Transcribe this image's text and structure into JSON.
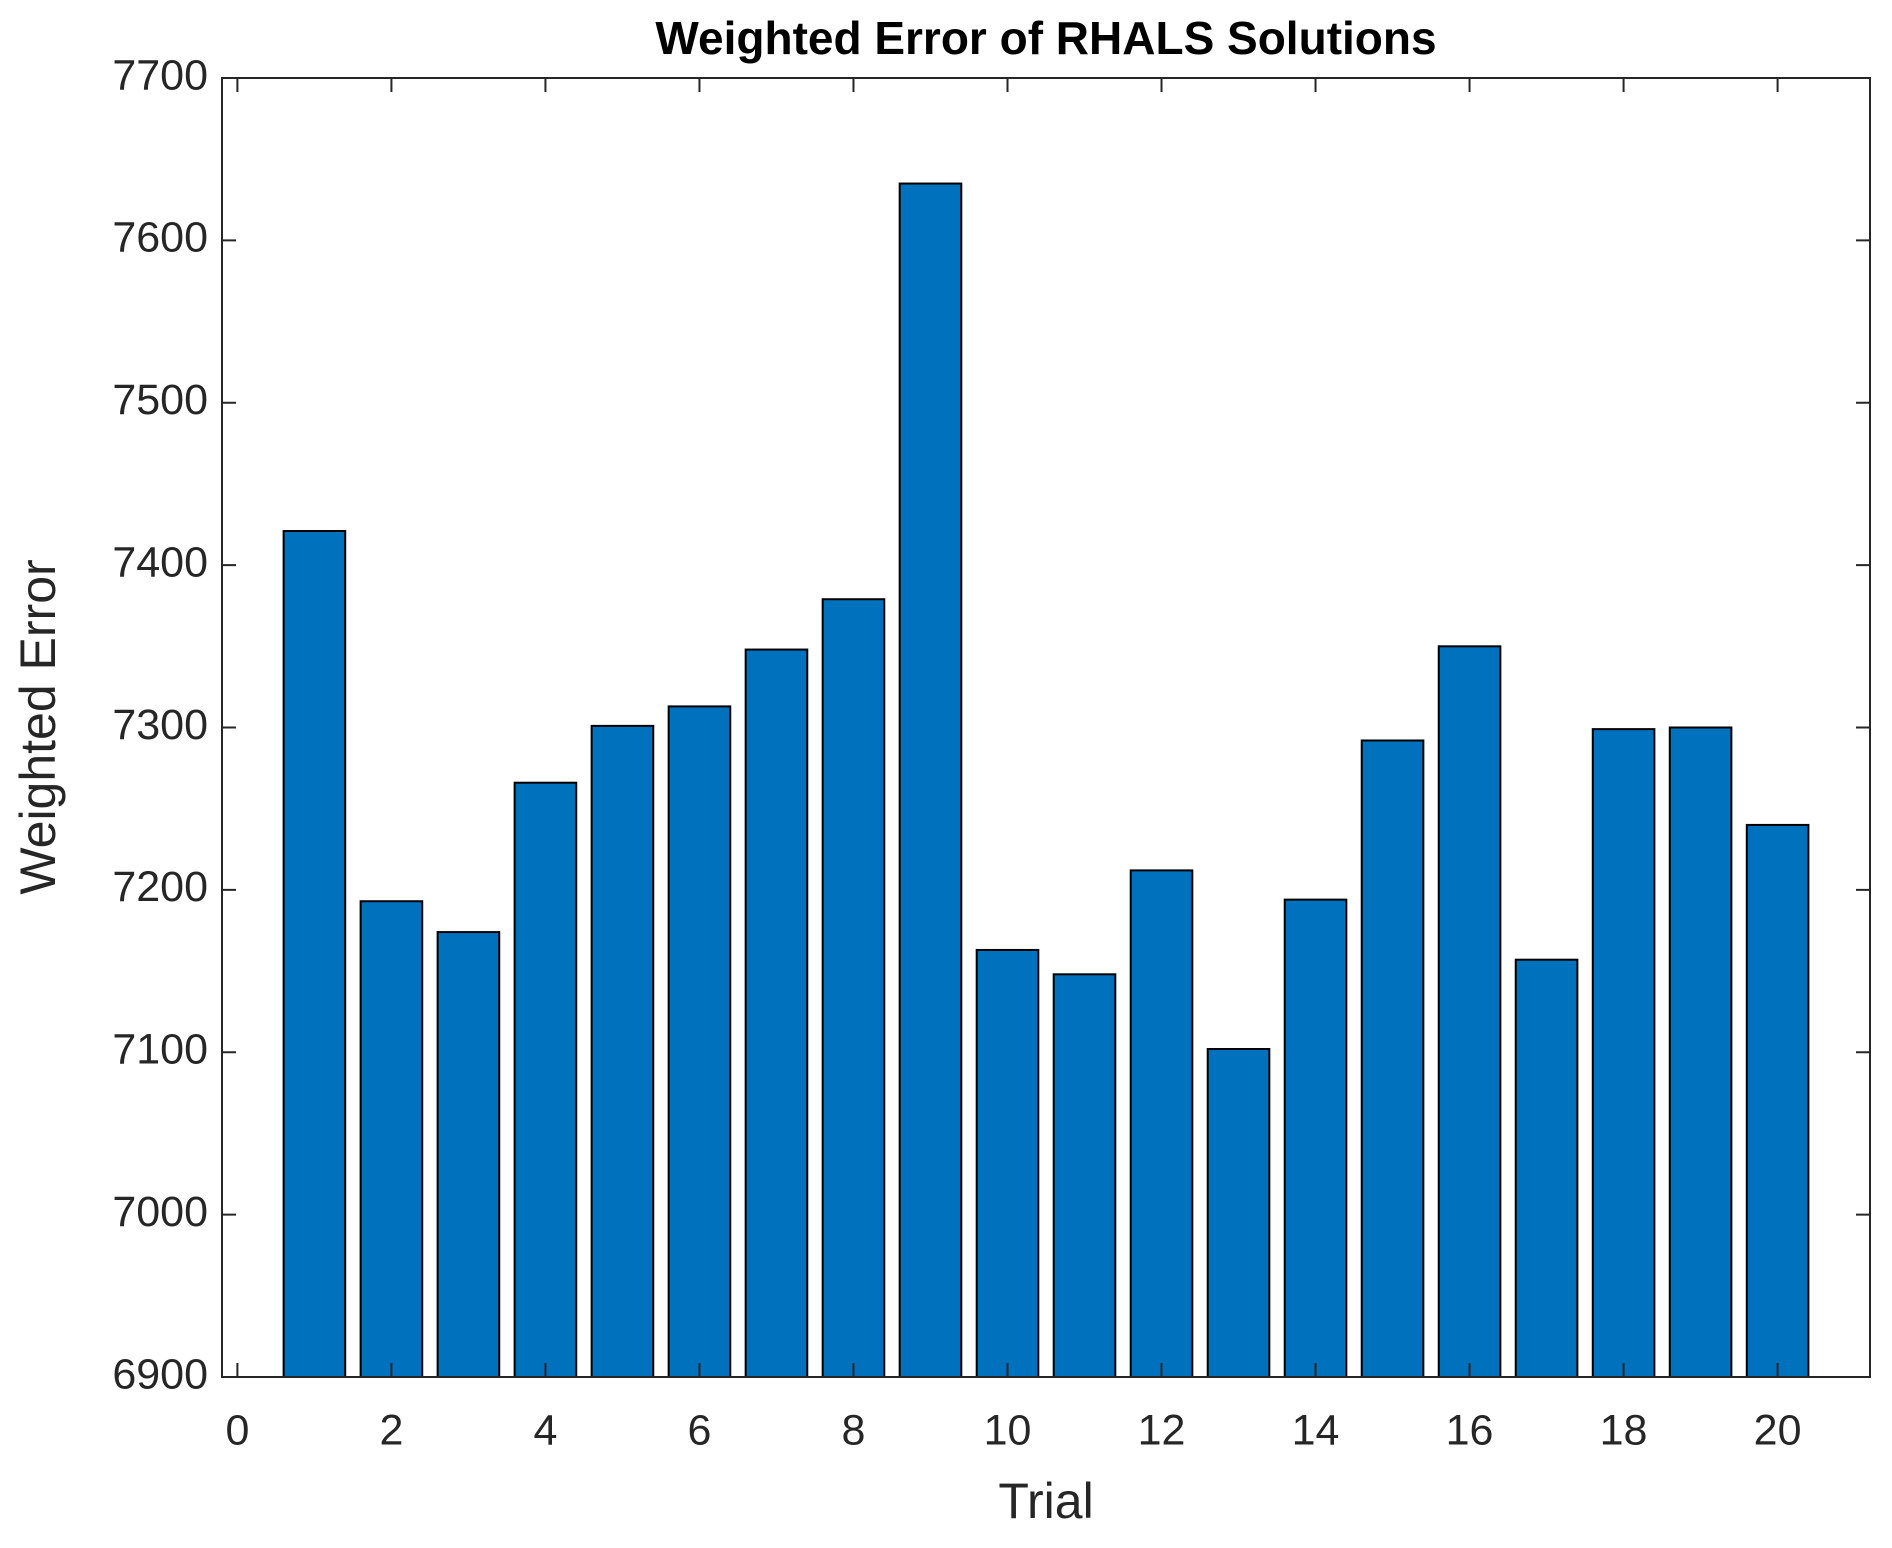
{
  "chart_data": {
    "type": "bar",
    "title": "Weighted Error of RHALS Solutions",
    "x_label": "Trial",
    "y_label": "Weighted Error",
    "x": [
      1,
      2,
      3,
      4,
      5,
      6,
      7,
      8,
      9,
      10,
      11,
      12,
      13,
      14,
      15,
      16,
      17,
      18,
      19,
      20
    ],
    "values": [
      7421,
      7193,
      7174,
      7266,
      7301,
      7313,
      7348,
      7379,
      7635,
      7163,
      7148,
      7212,
      7102,
      7194,
      7292,
      7350,
      7157,
      7299,
      7300,
      7240
    ],
    "color": "#0072bd",
    "xlim": [
      -0.2,
      21.2
    ],
    "xticks": [
      0,
      2,
      4,
      6,
      8,
      10,
      12,
      14,
      16,
      18,
      20
    ],
    "ylim": [
      6900,
      7700
    ],
    "yticks": [
      6900,
      7000,
      7100,
      7200,
      7300,
      7400,
      7500,
      7600,
      7700
    ]
  }
}
